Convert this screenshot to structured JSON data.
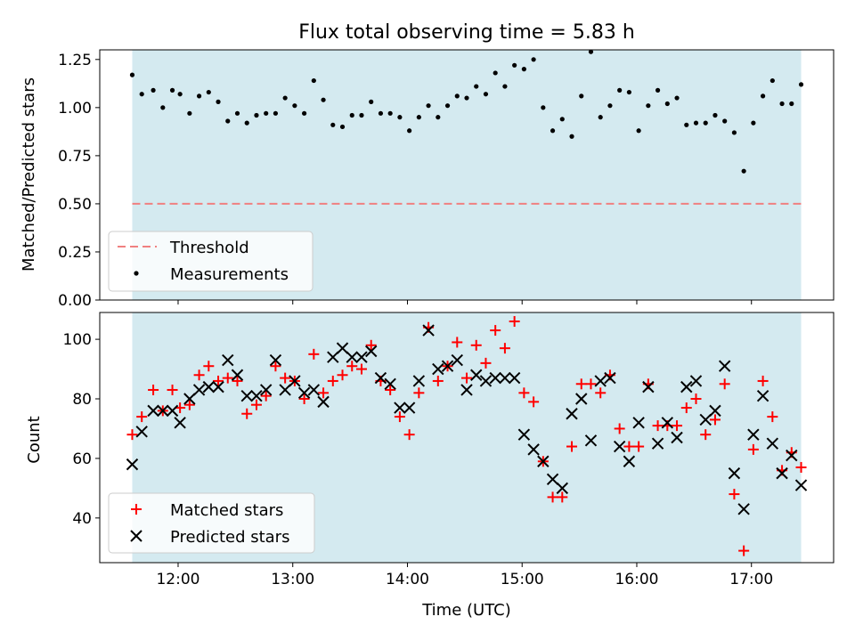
{
  "figure": {
    "title": "Flux total observing time = 5.83 h",
    "xlabel": "Time (UTC)"
  },
  "colors": {
    "observing_span": "#d4eaf0",
    "threshold_line": "#f08080",
    "matched": "#ff0000",
    "predicted": "#000000",
    "measurements": "#000000"
  },
  "chart_data": [
    {
      "type": "scatter",
      "ylabel": "Matched/Predicted stars",
      "ylim": [
        0.0,
        1.3
      ],
      "yticks": [
        "0.00",
        "0.25",
        "0.50",
        "0.75",
        "1.00",
        "1.25"
      ],
      "xlim": [
        "11:19",
        "17:43"
      ],
      "xticks": [
        "12:00",
        "13:00",
        "14:00",
        "15:00",
        "16:00",
        "17:00"
      ],
      "shaded_span": [
        "11:36",
        "17:26"
      ],
      "threshold": 0.5,
      "legend": {
        "position": "lower left",
        "entries": [
          "Threshold",
          "Measurements"
        ]
      },
      "series": [
        {
          "name": "Measurements",
          "points": [
            [
              "11:36",
              1.17
            ],
            [
              "11:41",
              1.07
            ],
            [
              "11:47",
              1.09
            ],
            [
              "11:52",
              1.0
            ],
            [
              "11:57",
              1.09
            ],
            [
              "12:01",
              1.07
            ],
            [
              "12:06",
              0.97
            ],
            [
              "12:11",
              1.06
            ],
            [
              "12:16",
              1.08
            ],
            [
              "12:21",
              1.03
            ],
            [
              "12:26",
              0.93
            ],
            [
              "12:31",
              0.97
            ],
            [
              "12:36",
              0.92
            ],
            [
              "12:41",
              0.96
            ],
            [
              "12:46",
              0.97
            ],
            [
              "12:51",
              0.97
            ],
            [
              "12:56",
              1.05
            ],
            [
              "13:01",
              1.01
            ],
            [
              "13:06",
              0.97
            ],
            [
              "13:11",
              1.14
            ],
            [
              "13:16",
              1.04
            ],
            [
              "13:21",
              0.91
            ],
            [
              "13:26",
              0.9
            ],
            [
              "13:31",
              0.96
            ],
            [
              "13:36",
              0.96
            ],
            [
              "13:41",
              1.03
            ],
            [
              "13:46",
              0.97
            ],
            [
              "13:51",
              0.97
            ],
            [
              "13:56",
              0.95
            ],
            [
              "14:01",
              0.88
            ],
            [
              "14:06",
              0.95
            ],
            [
              "14:11",
              1.01
            ],
            [
              "14:16",
              0.95
            ],
            [
              "14:21",
              1.01
            ],
            [
              "14:26",
              1.06
            ],
            [
              "14:31",
              1.05
            ],
            [
              "14:36",
              1.11
            ],
            [
              "14:41",
              1.07
            ],
            [
              "14:46",
              1.18
            ],
            [
              "14:51",
              1.11
            ],
            [
              "14:56",
              1.22
            ],
            [
              "15:01",
              1.2
            ],
            [
              "15:06",
              1.25
            ],
            [
              "15:11",
              1.0
            ],
            [
              "15:16",
              0.88
            ],
            [
              "15:21",
              0.94
            ],
            [
              "15:26",
              0.85
            ],
            [
              "15:31",
              1.06
            ],
            [
              "15:36",
              1.29
            ],
            [
              "15:41",
              0.95
            ],
            [
              "15:46",
              1.01
            ],
            [
              "15:51",
              1.09
            ],
            [
              "15:56",
              1.08
            ],
            [
              "16:01",
              0.88
            ],
            [
              "16:06",
              1.01
            ],
            [
              "16:11",
              1.09
            ],
            [
              "16:16",
              1.02
            ],
            [
              "16:21",
              1.05
            ],
            [
              "16:26",
              0.91
            ],
            [
              "16:31",
              0.92
            ],
            [
              "16:36",
              0.92
            ],
            [
              "16:41",
              0.96
            ],
            [
              "16:46",
              0.93
            ],
            [
              "16:51",
              0.87
            ],
            [
              "16:56",
              0.67
            ],
            [
              "17:01",
              0.92
            ],
            [
              "17:06",
              1.06
            ],
            [
              "17:11",
              1.14
            ],
            [
              "17:16",
              1.02
            ],
            [
              "17:21",
              1.02
            ],
            [
              "17:26",
              1.12
            ]
          ]
        }
      ]
    },
    {
      "type": "scatter",
      "ylabel": "Count",
      "ylim": [
        25,
        109
      ],
      "yticks": [
        "40",
        "60",
        "80",
        "100"
      ],
      "xlim": [
        "11:19",
        "17:43"
      ],
      "xticks": [
        "12:00",
        "13:00",
        "14:00",
        "15:00",
        "16:00",
        "17:00"
      ],
      "shaded_span": [
        "11:36",
        "17:26"
      ],
      "legend": {
        "position": "lower left",
        "entries": [
          "Matched stars",
          "Predicted stars"
        ]
      },
      "series": [
        {
          "name": "Matched stars",
          "marker": "plus",
          "points": [
            [
              "11:36",
              68
            ],
            [
              "11:41",
              74
            ],
            [
              "11:47",
              83
            ],
            [
              "11:52",
              76
            ],
            [
              "11:57",
              83
            ],
            [
              "12:01",
              77
            ],
            [
              "12:06",
              78
            ],
            [
              "12:11",
              88
            ],
            [
              "12:16",
              91
            ],
            [
              "12:21",
              86
            ],
            [
              "12:26",
              87
            ],
            [
              "12:31",
              86
            ],
            [
              "12:36",
              75
            ],
            [
              "12:41",
              78
            ],
            [
              "12:46",
              81
            ],
            [
              "12:51",
              91
            ],
            [
              "12:56",
              87
            ],
            [
              "13:01",
              86
            ],
            [
              "13:06",
              80
            ],
            [
              "13:11",
              95
            ],
            [
              "13:16",
              82
            ],
            [
              "13:21",
              86
            ],
            [
              "13:26",
              88
            ],
            [
              "13:31",
              91
            ],
            [
              "13:36",
              90
            ],
            [
              "13:41",
              98
            ],
            [
              "13:46",
              86
            ],
            [
              "13:51",
              83
            ],
            [
              "13:56",
              74
            ],
            [
              "14:01",
              68
            ],
            [
              "14:06",
              82
            ],
            [
              "14:11",
              104
            ],
            [
              "14:16",
              86
            ],
            [
              "14:21",
              91
            ],
            [
              "14:26",
              99
            ],
            [
              "14:31",
              87
            ],
            [
              "14:36",
              98
            ],
            [
              "14:41",
              92
            ],
            [
              "14:46",
              103
            ],
            [
              "14:51",
              97
            ],
            [
              "14:56",
              106
            ],
            [
              "15:01",
              82
            ],
            [
              "15:06",
              79
            ],
            [
              "15:11",
              59
            ],
            [
              "15:16",
              47
            ],
            [
              "15:21",
              47
            ],
            [
              "15:26",
              64
            ],
            [
              "15:31",
              85
            ],
            [
              "15:36",
              85
            ],
            [
              "15:41",
              82
            ],
            [
              "15:46",
              88
            ],
            [
              "15:51",
              70
            ],
            [
              "15:56",
              64
            ],
            [
              "16:01",
              64
            ],
            [
              "16:06",
              85
            ],
            [
              "16:11",
              71
            ],
            [
              "16:16",
              71
            ],
            [
              "16:21",
              71
            ],
            [
              "16:26",
              77
            ],
            [
              "16:31",
              80
            ],
            [
              "16:36",
              68
            ],
            [
              "16:41",
              73
            ],
            [
              "16:46",
              85
            ],
            [
              "16:51",
              48
            ],
            [
              "16:56",
              29
            ],
            [
              "17:01",
              63
            ],
            [
              "17:06",
              86
            ],
            [
              "17:11",
              74
            ],
            [
              "17:16",
              56
            ],
            [
              "17:21",
              62
            ],
            [
              "17:26",
              57
            ]
          ]
        },
        {
          "name": "Predicted stars",
          "marker": "x",
          "points": [
            [
              "11:36",
              58
            ],
            [
              "11:41",
              69
            ],
            [
              "11:47",
              76
            ],
            [
              "11:52",
              76
            ],
            [
              "11:57",
              76
            ],
            [
              "12:01",
              72
            ],
            [
              "12:06",
              80
            ],
            [
              "12:11",
              83
            ],
            [
              "12:16",
              84
            ],
            [
              "12:21",
              84
            ],
            [
              "12:26",
              93
            ],
            [
              "12:31",
              88
            ],
            [
              "12:36",
              81
            ],
            [
              "12:41",
              81
            ],
            [
              "12:46",
              83
            ],
            [
              "12:51",
              93
            ],
            [
              "12:56",
              83
            ],
            [
              "13:01",
              86
            ],
            [
              "13:06",
              82
            ],
            [
              "13:11",
              83
            ],
            [
              "13:16",
              79
            ],
            [
              "13:21",
              94
            ],
            [
              "13:26",
              97
            ],
            [
              "13:31",
              94
            ],
            [
              "13:36",
              94
            ],
            [
              "13:41",
              96
            ],
            [
              "13:46",
              87
            ],
            [
              "13:51",
              85
            ],
            [
              "13:56",
              77
            ],
            [
              "14:01",
              77
            ],
            [
              "14:06",
              86
            ],
            [
              "14:11",
              103
            ],
            [
              "14:16",
              90
            ],
            [
              "14:21",
              91
            ],
            [
              "14:26",
              93
            ],
            [
              "14:31",
              83
            ],
            [
              "14:36",
              88
            ],
            [
              "14:41",
              86
            ],
            [
              "14:46",
              87
            ],
            [
              "14:51",
              87
            ],
            [
              "14:56",
              87
            ],
            [
              "15:01",
              68
            ],
            [
              "15:06",
              63
            ],
            [
              "15:11",
              59
            ],
            [
              "15:16",
              53
            ],
            [
              "15:21",
              50
            ],
            [
              "15:26",
              75
            ],
            [
              "15:31",
              80
            ],
            [
              "15:36",
              66
            ],
            [
              "15:41",
              86
            ],
            [
              "15:46",
              87
            ],
            [
              "15:51",
              64
            ],
            [
              "15:56",
              59
            ],
            [
              "16:01",
              72
            ],
            [
              "16:06",
              84
            ],
            [
              "16:11",
              65
            ],
            [
              "16:16",
              72
            ],
            [
              "16:21",
              67
            ],
            [
              "16:26",
              84
            ],
            [
              "16:31",
              86
            ],
            [
              "16:36",
              73
            ],
            [
              "16:41",
              76
            ],
            [
              "16:46",
              91
            ],
            [
              "16:51",
              55
            ],
            [
              "16:56",
              43
            ],
            [
              "17:01",
              68
            ],
            [
              "17:06",
              81
            ],
            [
              "17:11",
              65
            ],
            [
              "17:16",
              55
            ],
            [
              "17:21",
              61
            ],
            [
              "17:26",
              51
            ]
          ]
        }
      ]
    }
  ]
}
